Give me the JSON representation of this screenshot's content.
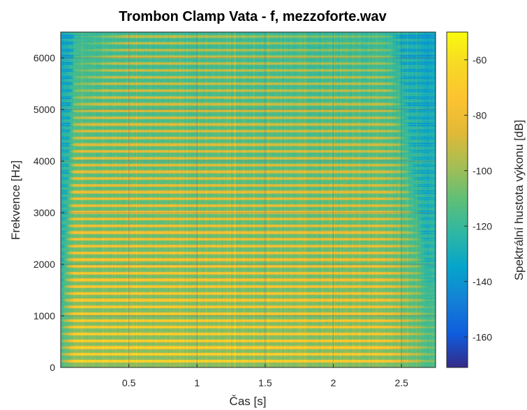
{
  "chart_data": {
    "type": "heatmap",
    "title": "Trombon Clamp Vata - f, mezzoforte.wav",
    "xlabel": "Čas [s]",
    "ylabel": "Frekvence [Hz]",
    "colorbar_label": "Spektrální hustota výkonu [dB]",
    "xlim": [
      0,
      2.75
    ],
    "ylim": [
      0,
      6500
    ],
    "clim": [
      -171,
      -50
    ],
    "x_ticks": [
      {
        "value": 0.5,
        "label": "0.5"
      },
      {
        "value": 1,
        "label": "1"
      },
      {
        "value": 1.5,
        "label": "1.5"
      },
      {
        "value": 2,
        "label": "2"
      },
      {
        "value": 2.5,
        "label": "2.5"
      }
    ],
    "y_ticks": [
      {
        "value": 0,
        "label": "0"
      },
      {
        "value": 1000,
        "label": "1000"
      },
      {
        "value": 2000,
        "label": "2000"
      },
      {
        "value": 3000,
        "label": "3000"
      },
      {
        "value": 4000,
        "label": "4000"
      },
      {
        "value": 5000,
        "label": "5000"
      },
      {
        "value": 6000,
        "label": "6000"
      }
    ],
    "colorbar_ticks": [
      {
        "value": -60,
        "label": "-60"
      },
      {
        "value": -80,
        "label": "-80"
      },
      {
        "value": -100,
        "label": "-100"
      },
      {
        "value": -120,
        "label": "-120"
      },
      {
        "value": -140,
        "label": "-140"
      },
      {
        "value": -160,
        "label": "-160"
      }
    ],
    "colormap": "parula",
    "grid": true,
    "fundamental_hz": 131,
    "note_onset_s": 0.1,
    "note_release_s": 2.4,
    "peak_level_db": -55,
    "noise_floor_db": -125
  }
}
